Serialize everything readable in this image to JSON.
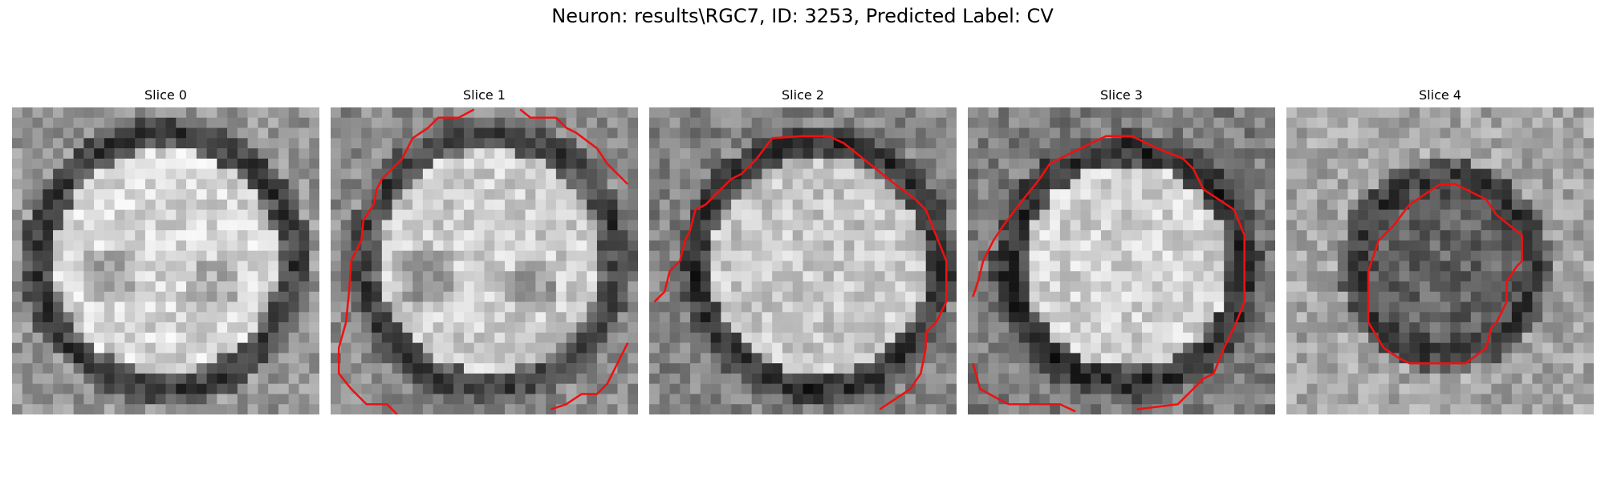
{
  "figure": {
    "title": "Neuron: results\\RGC7, ID: 3253, Predicted Label: CV"
  },
  "panels": [
    {
      "label": "Slice 0",
      "contour": false
    },
    {
      "label": "Slice 1",
      "contour": true
    },
    {
      "label": "Slice 2",
      "contour": true
    },
    {
      "label": "Slice 3",
      "contour": true
    },
    {
      "label": "Slice 4",
      "contour": true
    }
  ],
  "colors": {
    "contour": "#ee1111",
    "background": "#ffffff"
  },
  "colormap": "gray"
}
